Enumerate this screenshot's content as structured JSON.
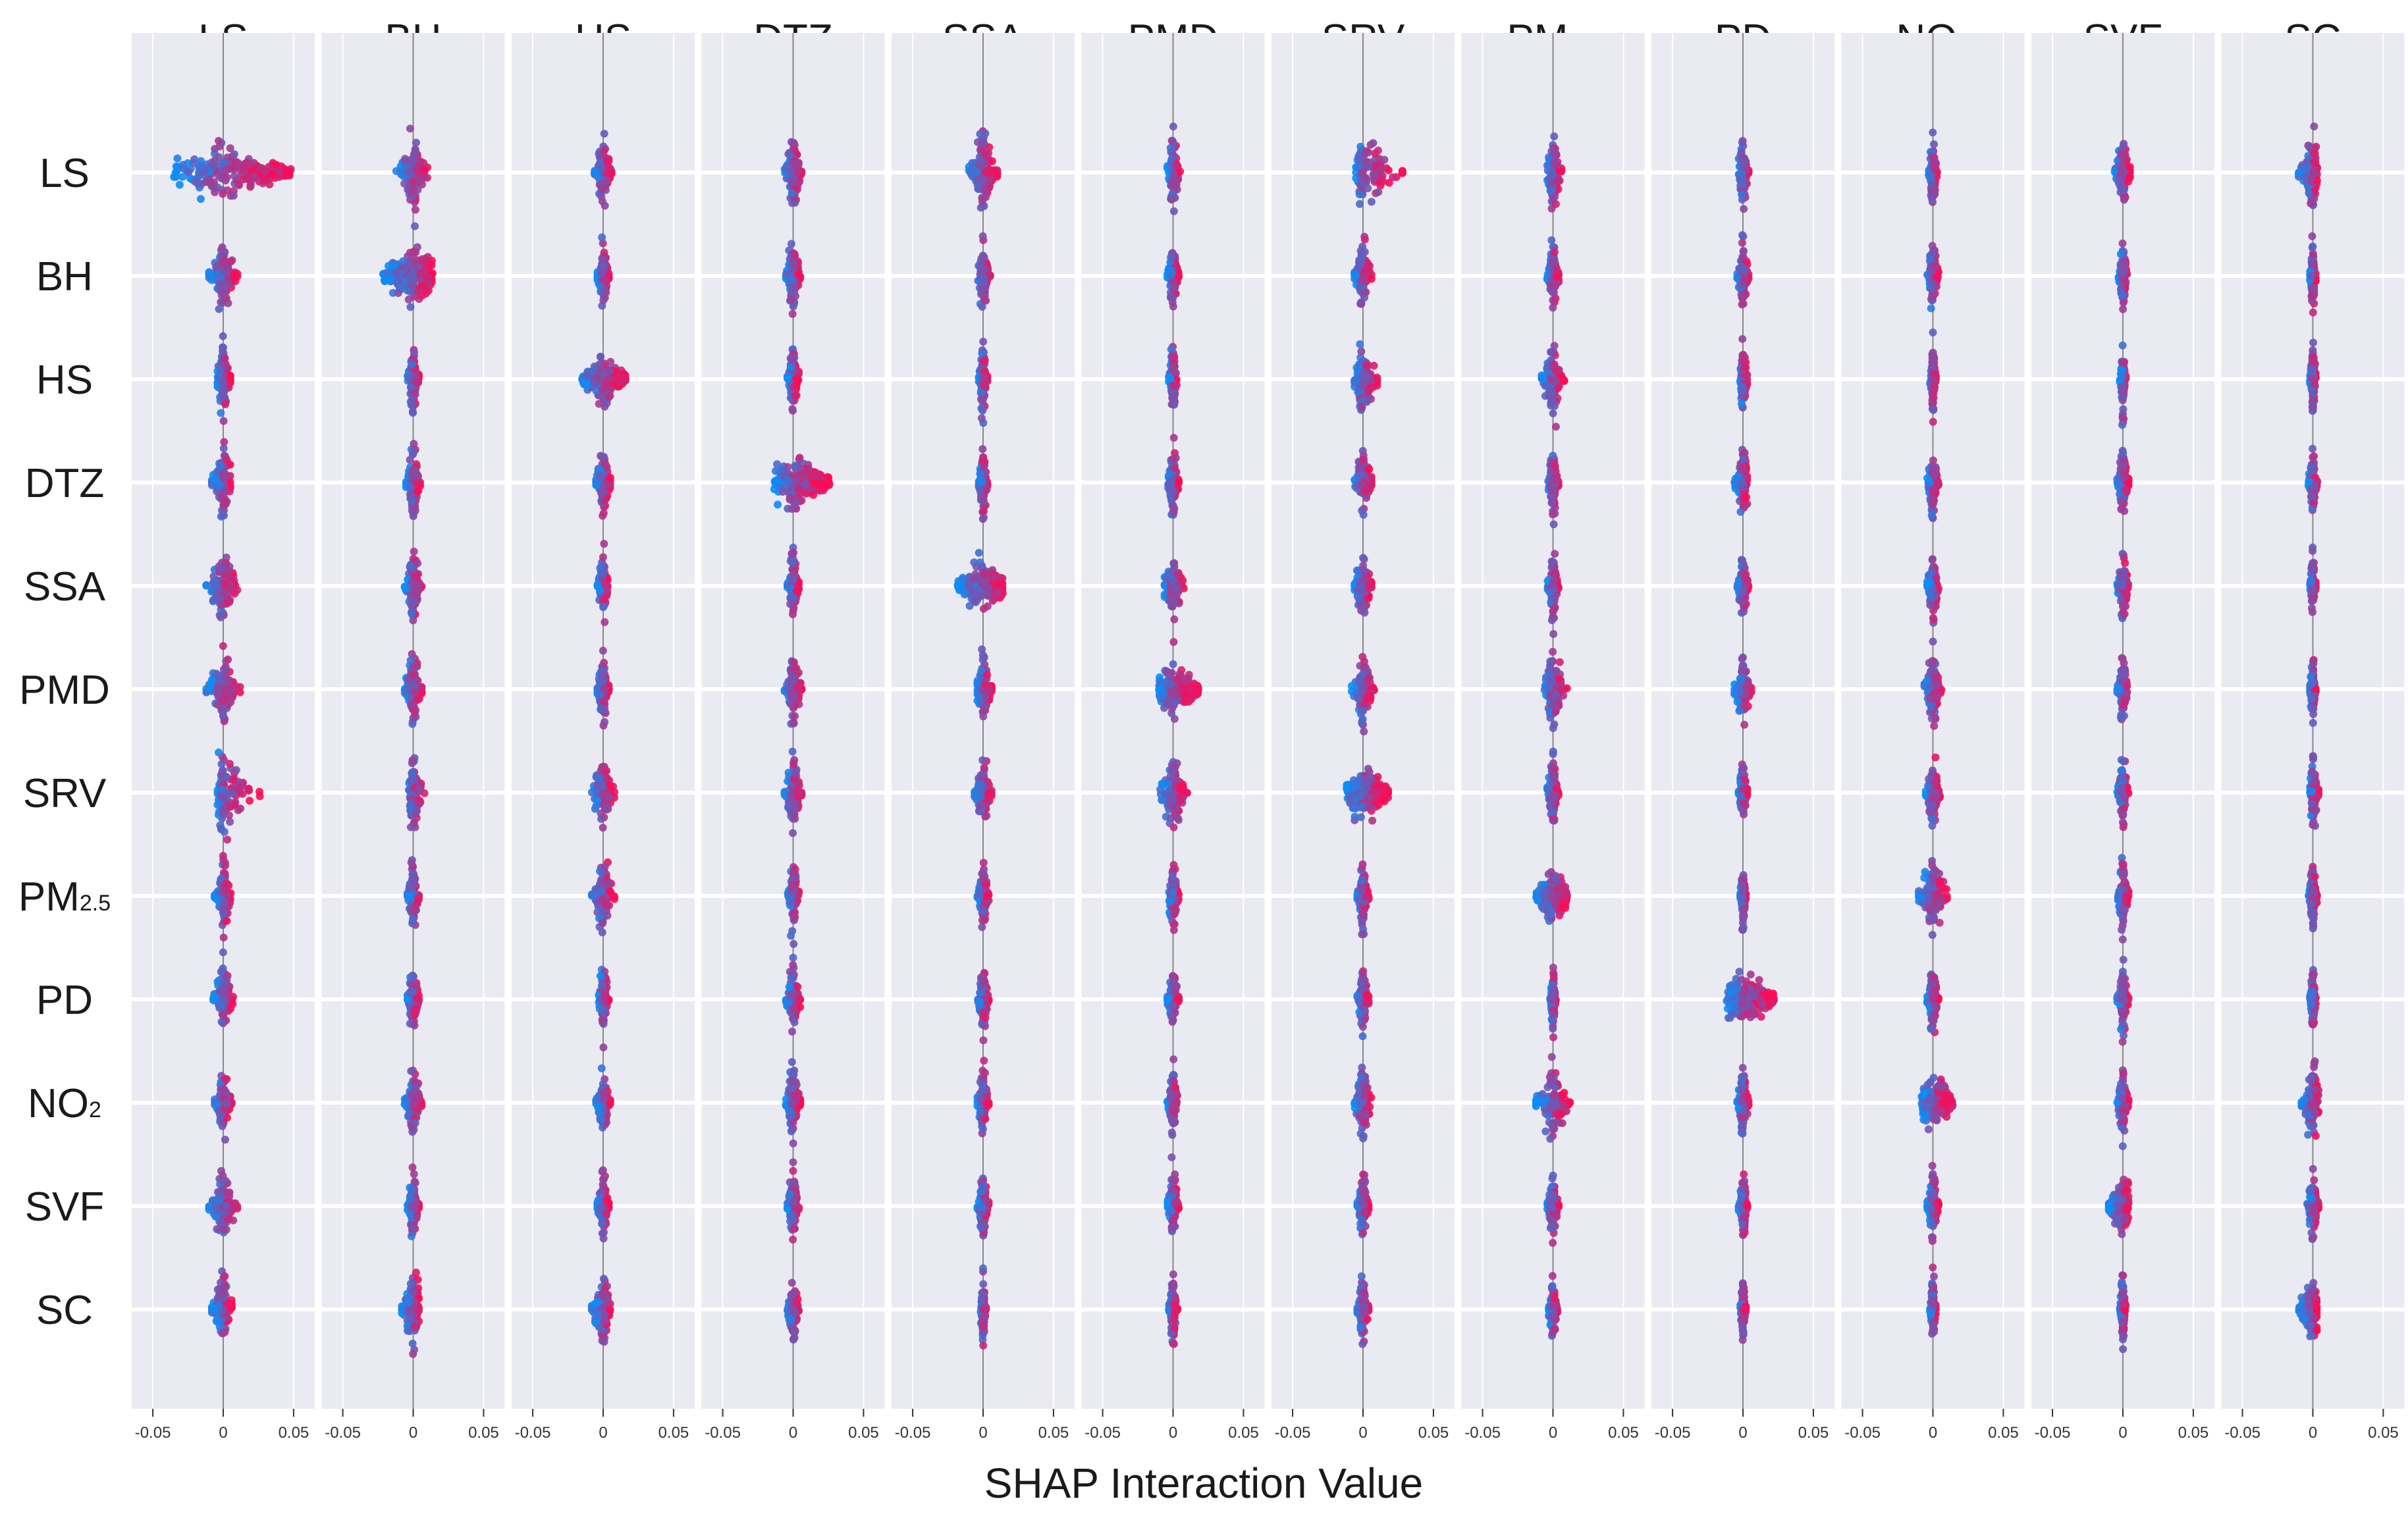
{
  "chart_data": {
    "type": "scatter",
    "subtype": "shap-interaction-beeswarm-matrix",
    "features": [
      {
        "id": "LS",
        "base": "LS",
        "sub": ""
      },
      {
        "id": "BH",
        "base": "BH",
        "sub": ""
      },
      {
        "id": "HS",
        "base": "HS",
        "sub": ""
      },
      {
        "id": "DTZ",
        "base": "DTZ",
        "sub": ""
      },
      {
        "id": "SSA",
        "base": "SSA",
        "sub": ""
      },
      {
        "id": "PMD",
        "base": "PMD",
        "sub": ""
      },
      {
        "id": "SRV",
        "base": "SRV",
        "sub": ""
      },
      {
        "id": "PM2.5",
        "base": "PM",
        "sub": "2.5"
      },
      {
        "id": "PD",
        "base": "PD",
        "sub": ""
      },
      {
        "id": "NO2",
        "base": "NO",
        "sub": "2"
      },
      {
        "id": "SVF",
        "base": "SVF",
        "sub": ""
      },
      {
        "id": "SC",
        "base": "SC",
        "sub": ""
      }
    ],
    "xlabel": "SHAP   Interaction   Value",
    "xlim": [
      -0.065,
      0.065
    ],
    "xticks": [
      -0.05,
      0,
      0.05
    ],
    "xtick_labels": [
      "-0.05",
      "0",
      "0.05"
    ],
    "grid": true,
    "colors": {
      "background": "#eaeaf2",
      "grid": "#ffffff",
      "low": "#0b8df7",
      "high": "#ff0a54",
      "zero_line": "#888888"
    },
    "spread_min": [
      [
        -0.035,
        -0.012,
        -0.006,
        -0.006,
        -0.01,
        -0.004,
        -0.005,
        -0.004,
        -0.003,
        -0.003,
        -0.006,
        -0.01
      ],
      [
        -0.01,
        -0.022,
        -0.004,
        -0.005,
        -0.004,
        -0.004,
        -0.006,
        -0.004,
        -0.004,
        -0.004,
        -0.003,
        -0.002
      ],
      [
        -0.004,
        -0.004,
        -0.015,
        -0.004,
        -0.003,
        -0.003,
        -0.006,
        -0.008,
        -0.002,
        -0.002,
        -0.002,
        -0.002
      ],
      [
        -0.008,
        -0.005,
        -0.005,
        -0.014,
        -0.003,
        -0.004,
        -0.006,
        -0.004,
        -0.006,
        -0.004,
        -0.004,
        -0.003
      ],
      [
        -0.012,
        -0.006,
        -0.004,
        -0.004,
        -0.018,
        -0.006,
        -0.006,
        -0.004,
        -0.004,
        -0.004,
        -0.004,
        -0.002
      ],
      [
        -0.012,
        -0.006,
        -0.004,
        -0.006,
        -0.004,
        -0.01,
        -0.008,
        -0.006,
        -0.006,
        -0.006,
        -0.004,
        -0.002
      ],
      [
        -0.004,
        -0.004,
        -0.008,
        -0.006,
        -0.006,
        -0.01,
        -0.012,
        -0.004,
        -0.003,
        -0.005,
        -0.004,
        -0.002
      ],
      [
        -0.006,
        -0.004,
        -0.008,
        -0.004,
        -0.004,
        -0.004,
        -0.004,
        -0.012,
        -0.002,
        -0.01,
        -0.004,
        -0.003
      ],
      [
        -0.007,
        -0.004,
        -0.003,
        -0.005,
        -0.004,
        -0.004,
        -0.004,
        -0.002,
        -0.012,
        -0.004,
        -0.004,
        -0.002
      ],
      [
        -0.006,
        -0.006,
        -0.005,
        -0.005,
        -0.004,
        -0.004,
        -0.006,
        -0.012,
        -0.004,
        -0.008,
        -0.004,
        -0.008
      ],
      [
        -0.01,
        -0.004,
        -0.004,
        -0.004,
        -0.004,
        -0.004,
        -0.004,
        -0.004,
        -0.003,
        -0.004,
        -0.01,
        -0.004
      ],
      [
        -0.008,
        -0.008,
        -0.008,
        -0.004,
        -0.002,
        -0.003,
        -0.004,
        -0.003,
        -0.002,
        -0.002,
        -0.002,
        -0.01
      ]
    ],
    "spread_max": [
      [
        0.048,
        0.01,
        0.006,
        0.006,
        0.01,
        0.005,
        0.028,
        0.006,
        0.004,
        0.003,
        0.005,
        0.003
      ],
      [
        0.01,
        0.014,
        0.004,
        0.005,
        0.005,
        0.004,
        0.006,
        0.004,
        0.004,
        0.004,
        0.003,
        0.002
      ],
      [
        0.005,
        0.004,
        0.016,
        0.004,
        0.003,
        0.003,
        0.01,
        0.008,
        0.003,
        0.002,
        0.002,
        0.002
      ],
      [
        0.005,
        0.005,
        0.005,
        0.026,
        0.003,
        0.004,
        0.006,
        0.004,
        0.003,
        0.004,
        0.004,
        0.003
      ],
      [
        0.01,
        0.006,
        0.004,
        0.004,
        0.014,
        0.008,
        0.006,
        0.004,
        0.004,
        0.004,
        0.004,
        0.002
      ],
      [
        0.012,
        0.006,
        0.004,
        0.006,
        0.006,
        0.018,
        0.008,
        0.01,
        0.006,
        0.006,
        0.004,
        0.002
      ],
      [
        0.026,
        0.008,
        0.008,
        0.006,
        0.006,
        0.01,
        0.018,
        0.004,
        0.003,
        0.005,
        0.004,
        0.004
      ],
      [
        0.006,
        0.004,
        0.008,
        0.004,
        0.004,
        0.004,
        0.004,
        0.01,
        0.002,
        0.01,
        0.004,
        0.003
      ],
      [
        0.007,
        0.004,
        0.004,
        0.005,
        0.004,
        0.004,
        0.004,
        0.002,
        0.022,
        0.004,
        0.004,
        0.002
      ],
      [
        0.006,
        0.006,
        0.005,
        0.005,
        0.004,
        0.004,
        0.006,
        0.012,
        0.004,
        0.014,
        0.004,
        0.004
      ],
      [
        0.01,
        0.004,
        0.004,
        0.004,
        0.004,
        0.004,
        0.004,
        0.004,
        0.003,
        0.004,
        0.004,
        0.004
      ],
      [
        0.006,
        0.004,
        0.005,
        0.004,
        0.002,
        0.003,
        0.004,
        0.003,
        0.002,
        0.002,
        0.002,
        0.003
      ]
    ]
  }
}
